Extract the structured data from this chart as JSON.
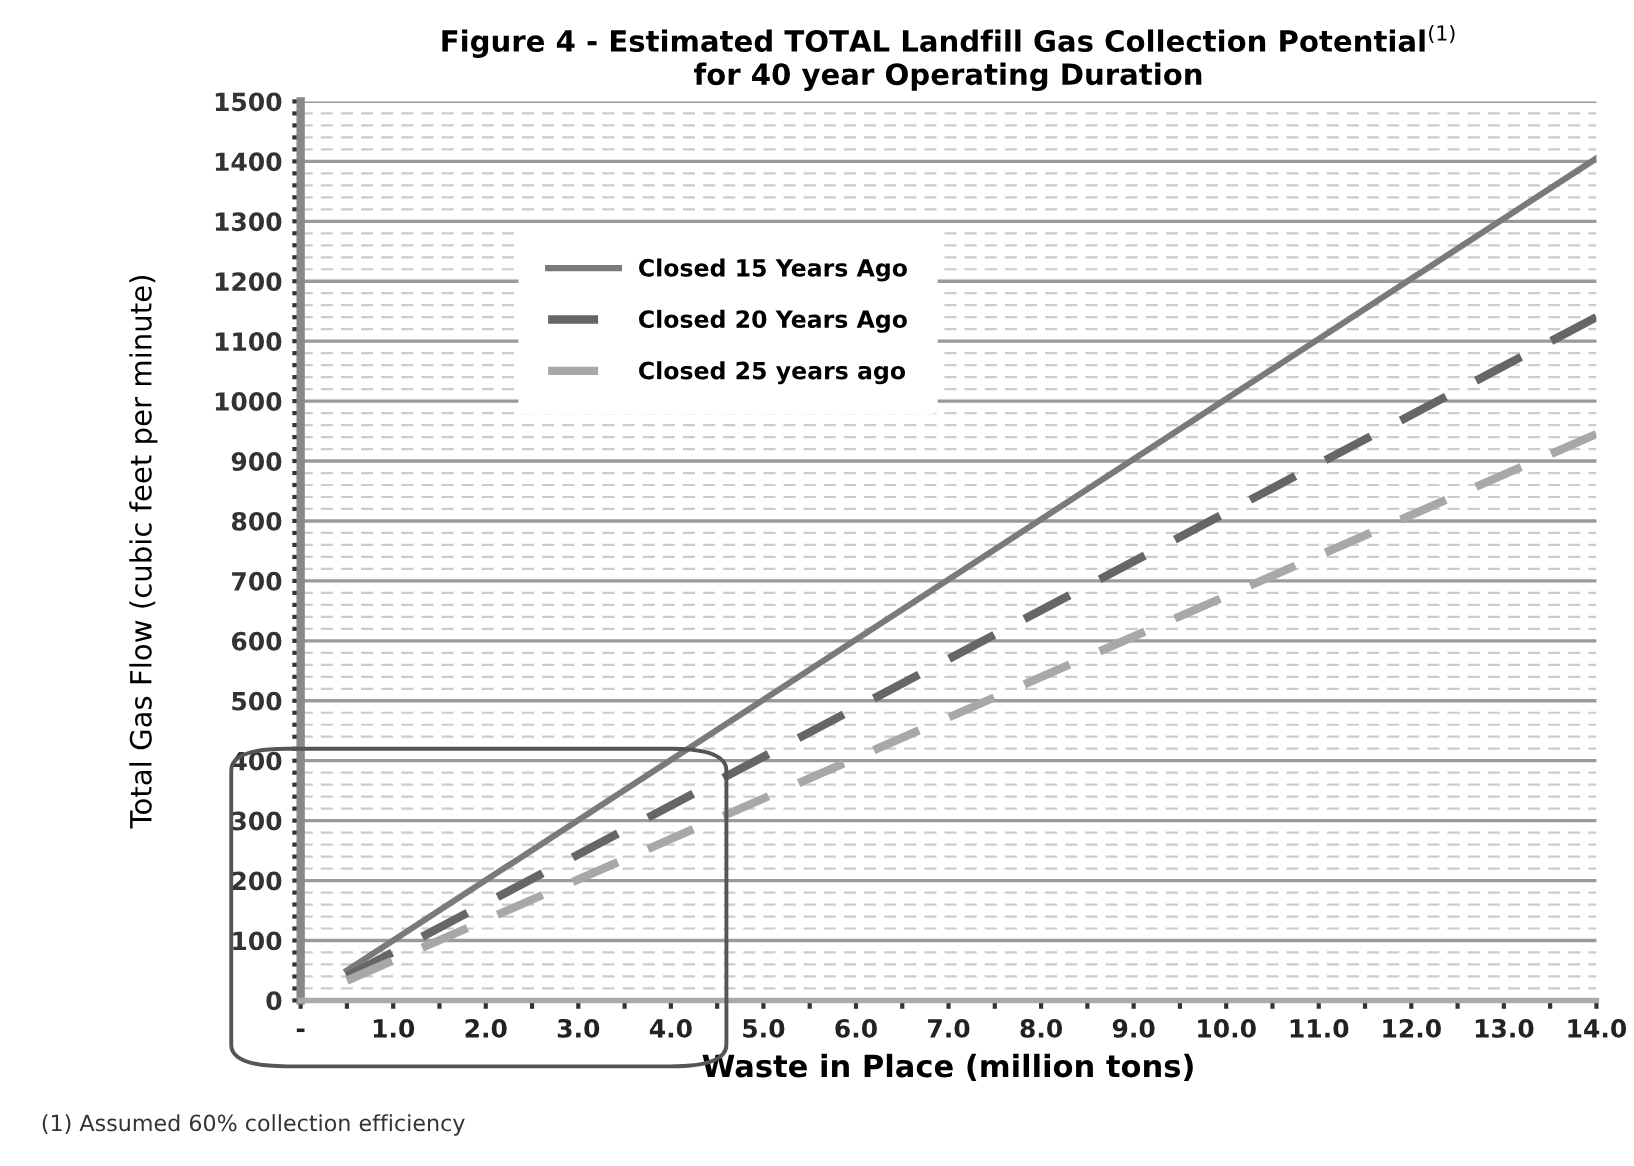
{
  "chart_data": {
    "type": "line",
    "title": "Figure 4 - Estimated TOTAL Landfill Gas Collection Potential$^{(1)}$\nfor 40 year Operating Duration",
    "xlabel": "Waste in Place (million tons)",
    "ylabel": "Total Gas Flow (cubic feet per minute)",
    "annotations": [
      "(1) Assumed 60% collection efficiency"
    ],
    "x": [
      0.5,
      14
    ],
    "series": [
      {
        "name": "Closed 15 Years Ago",
        "color": "#7a7a7a",
        "values": [
          50,
          1405
        ],
        "line_style": "solid"
      },
      {
        "name": "Closed 20 Years Ago",
        "color": "#666666",
        "values": [
          40,
          1140
        ],
        "line_style": "dashed"
      },
      {
        "name": "Closed 25 years ago",
        "color": "#a8a8a8",
        "values": [
          33,
          945
        ],
        "line_style": "dashed"
      }
    ],
    "xlim": [
      0,
      14
    ],
    "xticks": [
      {
        "value": 0,
        "label": "-"
      },
      {
        "value": 0.5,
        "label": null
      },
      {
        "value": 1,
        "label": "1.0"
      },
      {
        "value": 1.5,
        "label": null
      },
      {
        "value": 2,
        "label": "2.0"
      },
      {
        "value": 2.5,
        "label": null
      },
      {
        "value": 3,
        "label": "3.0"
      },
      {
        "value": 3.5,
        "label": null
      },
      {
        "value": 4,
        "label": "4.0"
      },
      {
        "value": 4.5,
        "label": null
      },
      {
        "value": 5,
        "label": "5.0"
      },
      {
        "value": 5.5,
        "label": null
      },
      {
        "value": 6,
        "label": "6.0"
      },
      {
        "value": 6.5,
        "label": null
      },
      {
        "value": 7,
        "label": "7.0"
      },
      {
        "value": 7.5,
        "label": null
      },
      {
        "value": 8,
        "label": "8.0"
      },
      {
        "value": 8.5,
        "label": null
      },
      {
        "value": 9,
        "label": "9.0"
      },
      {
        "value": 9.5,
        "label": null
      },
      {
        "value": 10,
        "label": "10.0"
      },
      {
        "value": 10.5,
        "label": null
      },
      {
        "value": 11,
        "label": "11.0"
      },
      {
        "value": 11.5,
        "label": null
      },
      {
        "value": 12,
        "label": "12.0"
      },
      {
        "value": 12.5,
        "label": null
      },
      {
        "value": 13,
        "label": "13.0"
      },
      {
        "value": 13.5,
        "label": null
      },
      {
        "value": 14,
        "label": "14.0"
      }
    ],
    "ylim": [
      0,
      1500
    ],
    "yticks": [
      0,
      {
        "value": 20,
        "label": null
      },
      {
        "value": 40,
        "label": null
      },
      {
        "value": 60,
        "label": null
      },
      {
        "value": 80,
        "label": null
      },
      100,
      {
        "value": 120,
        "label": null
      },
      {
        "value": 140,
        "label": null
      },
      {
        "value": 160,
        "label": null
      },
      {
        "value": 180,
        "label": null
      },
      200,
      {
        "value": 220,
        "label": null
      },
      {
        "value": 240,
        "label": null
      },
      {
        "value": 260,
        "label": null
      },
      {
        "value": 280,
        "label": null
      },
      300,
      {
        "value": 320,
        "label": null
      },
      {
        "value": 340,
        "label": null
      },
      {
        "value": 360,
        "label": null
      },
      {
        "value": 380,
        "label": null
      },
      400,
      {
        "value": 420,
        "label": null
      },
      {
        "value": 440,
        "label": null
      },
      {
        "value": 460,
        "label": null
      },
      {
        "value": 480,
        "label": null
      },
      500,
      {
        "value": 520,
        "label": null
      },
      {
        "value": 540,
        "label": null
      },
      {
        "value": 560,
        "label": null
      },
      {
        "value": 580,
        "label": null
      },
      600,
      {
        "value": 620,
        "label": null
      },
      {
        "value": 640,
        "label": null
      },
      {
        "value": 660,
        "label": null
      },
      {
        "value": 680,
        "label": null
      },
      700,
      {
        "value": 720,
        "label": null
      },
      {
        "value": 740,
        "label": null
      },
      {
        "value": 760,
        "label": null
      },
      {
        "value": 780,
        "label": null
      },
      800,
      {
        "value": 820,
        "label": null
      },
      {
        "value": 840,
        "label": null
      },
      {
        "value": 860,
        "label": null
      },
      {
        "value": 880,
        "label": null
      },
      900,
      {
        "value": 920,
        "label": null
      },
      {
        "value": 940,
        "label": null
      },
      {
        "value": 960,
        "label": null
      },
      {
        "value": 980,
        "label": null
      },
      1000,
      {
        "value": 1020,
        "label": null
      },
      {
        "value": 1040,
        "label": null
      },
      {
        "value": 1060,
        "label": null
      },
      {
        "value": 1080,
        "label": null
      },
      1100,
      {
        "value": 1120,
        "label": null
      },
      {
        "value": 1140,
        "label": null
      },
      {
        "value": 1160,
        "label": null
      },
      {
        "value": 1180,
        "label": null
      },
      1200,
      {
        "value": 1220,
        "label": null
      },
      {
        "value": 1240,
        "label": null
      },
      {
        "value": 1260,
        "label": null
      },
      {
        "value": 1280,
        "label": null
      },
      1300,
      {
        "value": 1320,
        "label": null
      },
      {
        "value": 1340,
        "label": null
      },
      {
        "value": 1360,
        "label": null
      },
      {
        "value": 1380,
        "label": null
      },
      1400,
      {
        "value": 1420,
        "label": null
      },
      {
        "value": 1440,
        "label": null
      },
      {
        "value": 1460,
        "label": null
      },
      {
        "value": 1480,
        "label": null
      },
      1500
    ],
    "grid": "y",
    "legend": "top left",
    "marker": "none"
  }
}
